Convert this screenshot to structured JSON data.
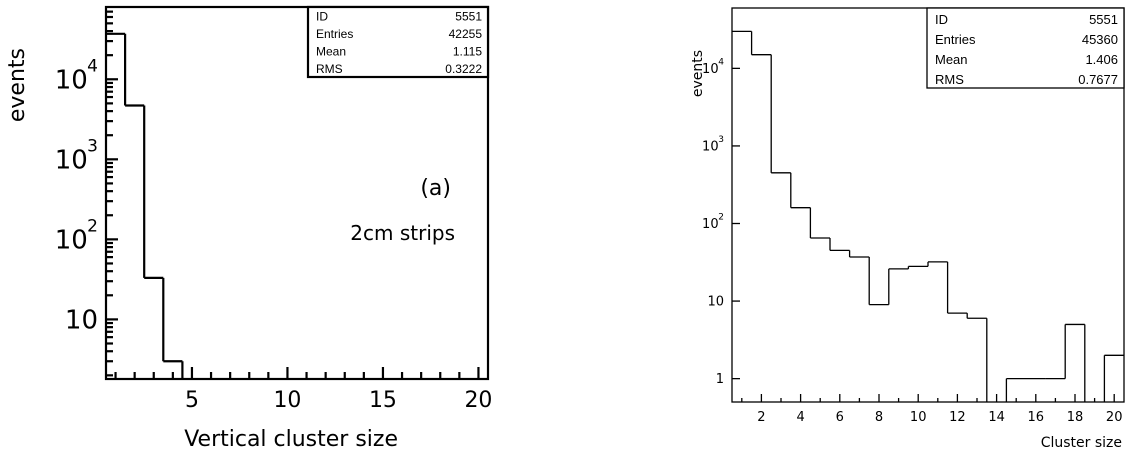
{
  "chart_data": [
    {
      "type": "histogram",
      "ylabel": "events",
      "xlabel": "Vertical cluster size",
      "yscale": "log",
      "xlim": [
        0.5,
        20.5
      ],
      "ylim": [
        1.8,
        80000
      ],
      "x_ticks": [
        {
          "v": 5,
          "label": "5"
        },
        {
          "v": 10,
          "label": "10"
        },
        {
          "v": 15,
          "label": "15"
        },
        {
          "v": 20,
          "label": "20"
        }
      ],
      "y_ticks": [
        {
          "v": 10,
          "base": "10",
          "exp": ""
        },
        {
          "v": 100,
          "base": "10",
          "exp": "2"
        },
        {
          "v": 1000,
          "base": "10",
          "exp": "3"
        },
        {
          "v": 10000,
          "base": "10",
          "exp": "4"
        }
      ],
      "bins": [
        {
          "x": 1,
          "count": 37000
        },
        {
          "x": 2,
          "count": 4700
        },
        {
          "x": 3,
          "count": 33
        },
        {
          "x": 4,
          "count": 3
        },
        {
          "x": 5,
          "count": 0
        }
      ],
      "stats": [
        {
          "label": "ID",
          "value": "5551"
        },
        {
          "label": "Entries",
          "value": "42255"
        },
        {
          "label": "Mean",
          "value": "1.115"
        },
        {
          "label": "RMS",
          "value": "0.3222"
        }
      ],
      "annotations": [
        "(a)",
        "2cm strips"
      ]
    },
    {
      "type": "histogram",
      "ylabel": "events",
      "xlabel": "Cluster size",
      "yscale": "log",
      "xlim": [
        0.5,
        20.5
      ],
      "ylim": [
        0.5,
        60000
      ],
      "x_ticks": [
        {
          "v": 2,
          "label": "2"
        },
        {
          "v": 4,
          "label": "4"
        },
        {
          "v": 6,
          "label": "6"
        },
        {
          "v": 8,
          "label": "8"
        },
        {
          "v": 10,
          "label": "10"
        },
        {
          "v": 12,
          "label": "12"
        },
        {
          "v": 14,
          "label": "14"
        },
        {
          "v": 16,
          "label": "16"
        },
        {
          "v": 18,
          "label": "18"
        },
        {
          "v": 20,
          "label": "20"
        }
      ],
      "y_ticks": [
        {
          "v": 1,
          "base": "1",
          "exp": ""
        },
        {
          "v": 10,
          "base": "10",
          "exp": ""
        },
        {
          "v": 100,
          "base": "10",
          "exp": "2"
        },
        {
          "v": 1000,
          "base": "10",
          "exp": "3"
        },
        {
          "v": 10000,
          "base": "10",
          "exp": "4"
        }
      ],
      "bins": [
        {
          "x": 1,
          "count": 30000
        },
        {
          "x": 2,
          "count": 15000
        },
        {
          "x": 3,
          "count": 450
        },
        {
          "x": 4,
          "count": 160
        },
        {
          "x": 5,
          "count": 65
        },
        {
          "x": 6,
          "count": 45
        },
        {
          "x": 7,
          "count": 37
        },
        {
          "x": 8,
          "count": 9
        },
        {
          "x": 9,
          "count": 26
        },
        {
          "x": 10,
          "count": 28
        },
        {
          "x": 11,
          "count": 32
        },
        {
          "x": 12,
          "count": 7
        },
        {
          "x": 13,
          "count": 6
        },
        {
          "x": 14,
          "count": 0
        },
        {
          "x": 15,
          "count": 1
        },
        {
          "x": 16,
          "count": 1
        },
        {
          "x": 17,
          "count": 1
        },
        {
          "x": 18,
          "count": 5
        },
        {
          "x": 19,
          "count": 0
        },
        {
          "x": 20,
          "count": 2
        }
      ],
      "stats": [
        {
          "label": "ID",
          "value": "5551"
        },
        {
          "label": "Entries",
          "value": "45360"
        },
        {
          "label": "Mean",
          "value": "1.406"
        },
        {
          "label": "RMS",
          "value": "0.7677"
        }
      ],
      "annotations": []
    }
  ]
}
